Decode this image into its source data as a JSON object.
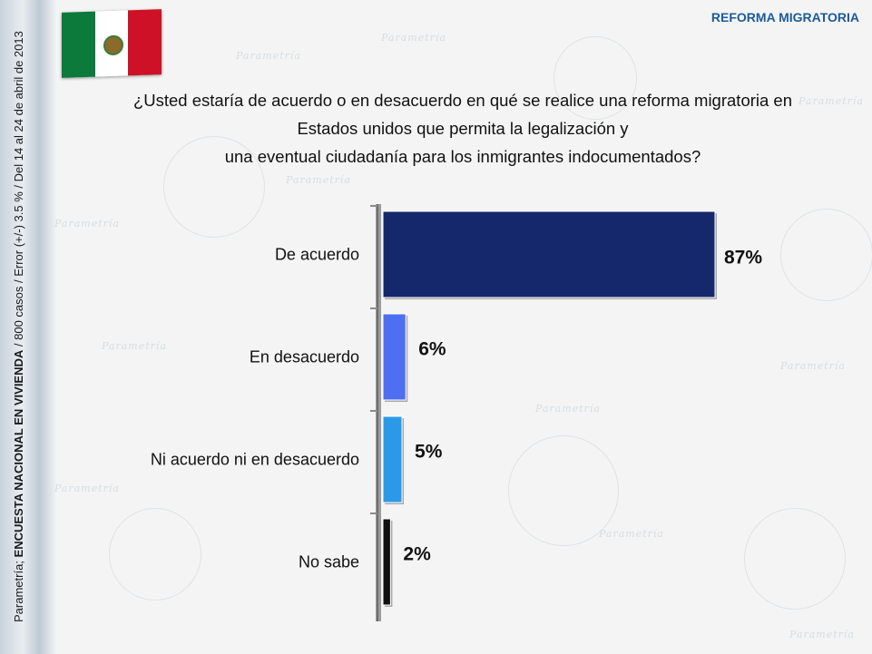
{
  "header": {
    "topic": "REFORMA MIGRATORIA",
    "flag_icon": "mexico-flag-icon"
  },
  "sidebar": {
    "source": "Parametría;",
    "survey": "ENCUESTA NACIONAL EN VIVIENDA",
    "details": "/ 800 casos / Error (+/-) 3.5 % / Del 14 al 24  de abril de 2013"
  },
  "question": {
    "line1": "¿Usted estaría de acuerdo o en desacuerdo en qué se realice una reforma migratoria en",
    "line2": "Estados unidos que permita la legalización y",
    "line3": "una eventual ciudadanía para los inmigrantes indocumentados?"
  },
  "chart_data": {
    "type": "bar",
    "orientation": "horizontal",
    "categories": [
      "De acuerdo",
      "En desacuerdo",
      "Ni acuerdo ni en desacuerdo",
      "No sabe"
    ],
    "values": [
      87,
      6,
      5,
      2
    ],
    "value_labels": [
      "87%",
      "6%",
      "5%",
      "2%"
    ],
    "colors": [
      "#14286b",
      "#4e6ff0",
      "#2a9ae8",
      "#111111"
    ],
    "xlim": [
      0,
      87
    ],
    "grid": false
  }
}
